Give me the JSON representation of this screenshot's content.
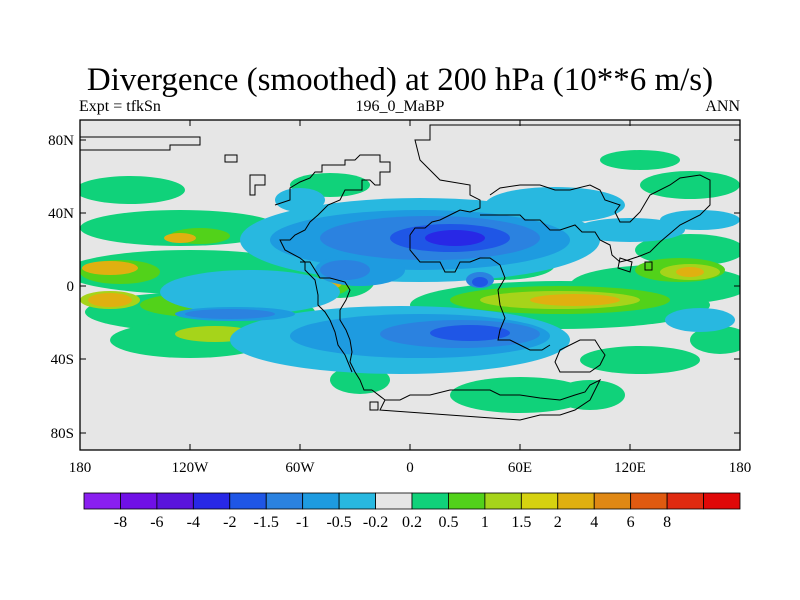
{
  "title": "Divergence (smoothed) at 200 hPa (10**6 m/s)",
  "subtitle_left": "Expt = tfkSn",
  "subtitle_center": "196_0_MaBP",
  "subtitle_right": "ANN",
  "axes": {
    "x_ticks": [
      "180",
      "120W",
      "60W",
      "0",
      "60E",
      "120E",
      "180"
    ],
    "y_ticks": [
      "80N",
      "40N",
      "0",
      "40S",
      "80S"
    ]
  },
  "colorbar": {
    "colors": [
      "#8a1ff0",
      "#7010e6",
      "#5a14dc",
      "#2828e6",
      "#1f56e6",
      "#2b82e0",
      "#1e9be0",
      "#28b8e0",
      "#e6e6e6",
      "#10d27a",
      "#52d21a",
      "#a6d41a",
      "#d6d210",
      "#e0b010",
      "#e08814",
      "#e05a10",
      "#e02a10",
      "#e00808"
    ],
    "labels": [
      "-8",
      "-6",
      "-4",
      "-2",
      "-1.5",
      "-1",
      "-0.5",
      "-0.2",
      "0.2",
      "0.5",
      "1",
      "1.5",
      "2",
      "4",
      "6",
      "8"
    ]
  },
  "chart_data": {
    "type": "heatmap",
    "title": "Divergence (smoothed) at 200 hPa (10**6 m/s)",
    "variable": "divergence",
    "level_hPa": 200,
    "units": "10**6 m/s",
    "experiment": "tfkSn",
    "period": "196_0_MaBP",
    "season": "ANN",
    "x_range": [
      -180,
      180
    ],
    "y_range": [
      -90,
      90
    ],
    "contour_levels": [
      -8,
      -6,
      -4,
      -2,
      -1.5,
      -1,
      -0.5,
      -0.2,
      0.2,
      0.5,
      1,
      1.5,
      2,
      4,
      6,
      8
    ],
    "features": [
      {
        "region": "Equatorial central/east Pacific",
        "sign": "positive",
        "approx_value": 2
      },
      {
        "region": "Tropical South America",
        "sign": "negative",
        "approx_value": -1.5
      },
      {
        "region": "Equatorial Atlantic near 40W",
        "sign": "positive",
        "approx_value": 2
      },
      {
        "region": "North Africa / Middle East (~30N)",
        "sign": "negative",
        "approx_value": -2
      },
      {
        "region": "Indian Ocean south of equator",
        "sign": "positive",
        "approx_value": 1.5
      },
      {
        "region": "Southern Ocean (~40S)",
        "sign": "negative",
        "approx_value": -1
      }
    ]
  }
}
